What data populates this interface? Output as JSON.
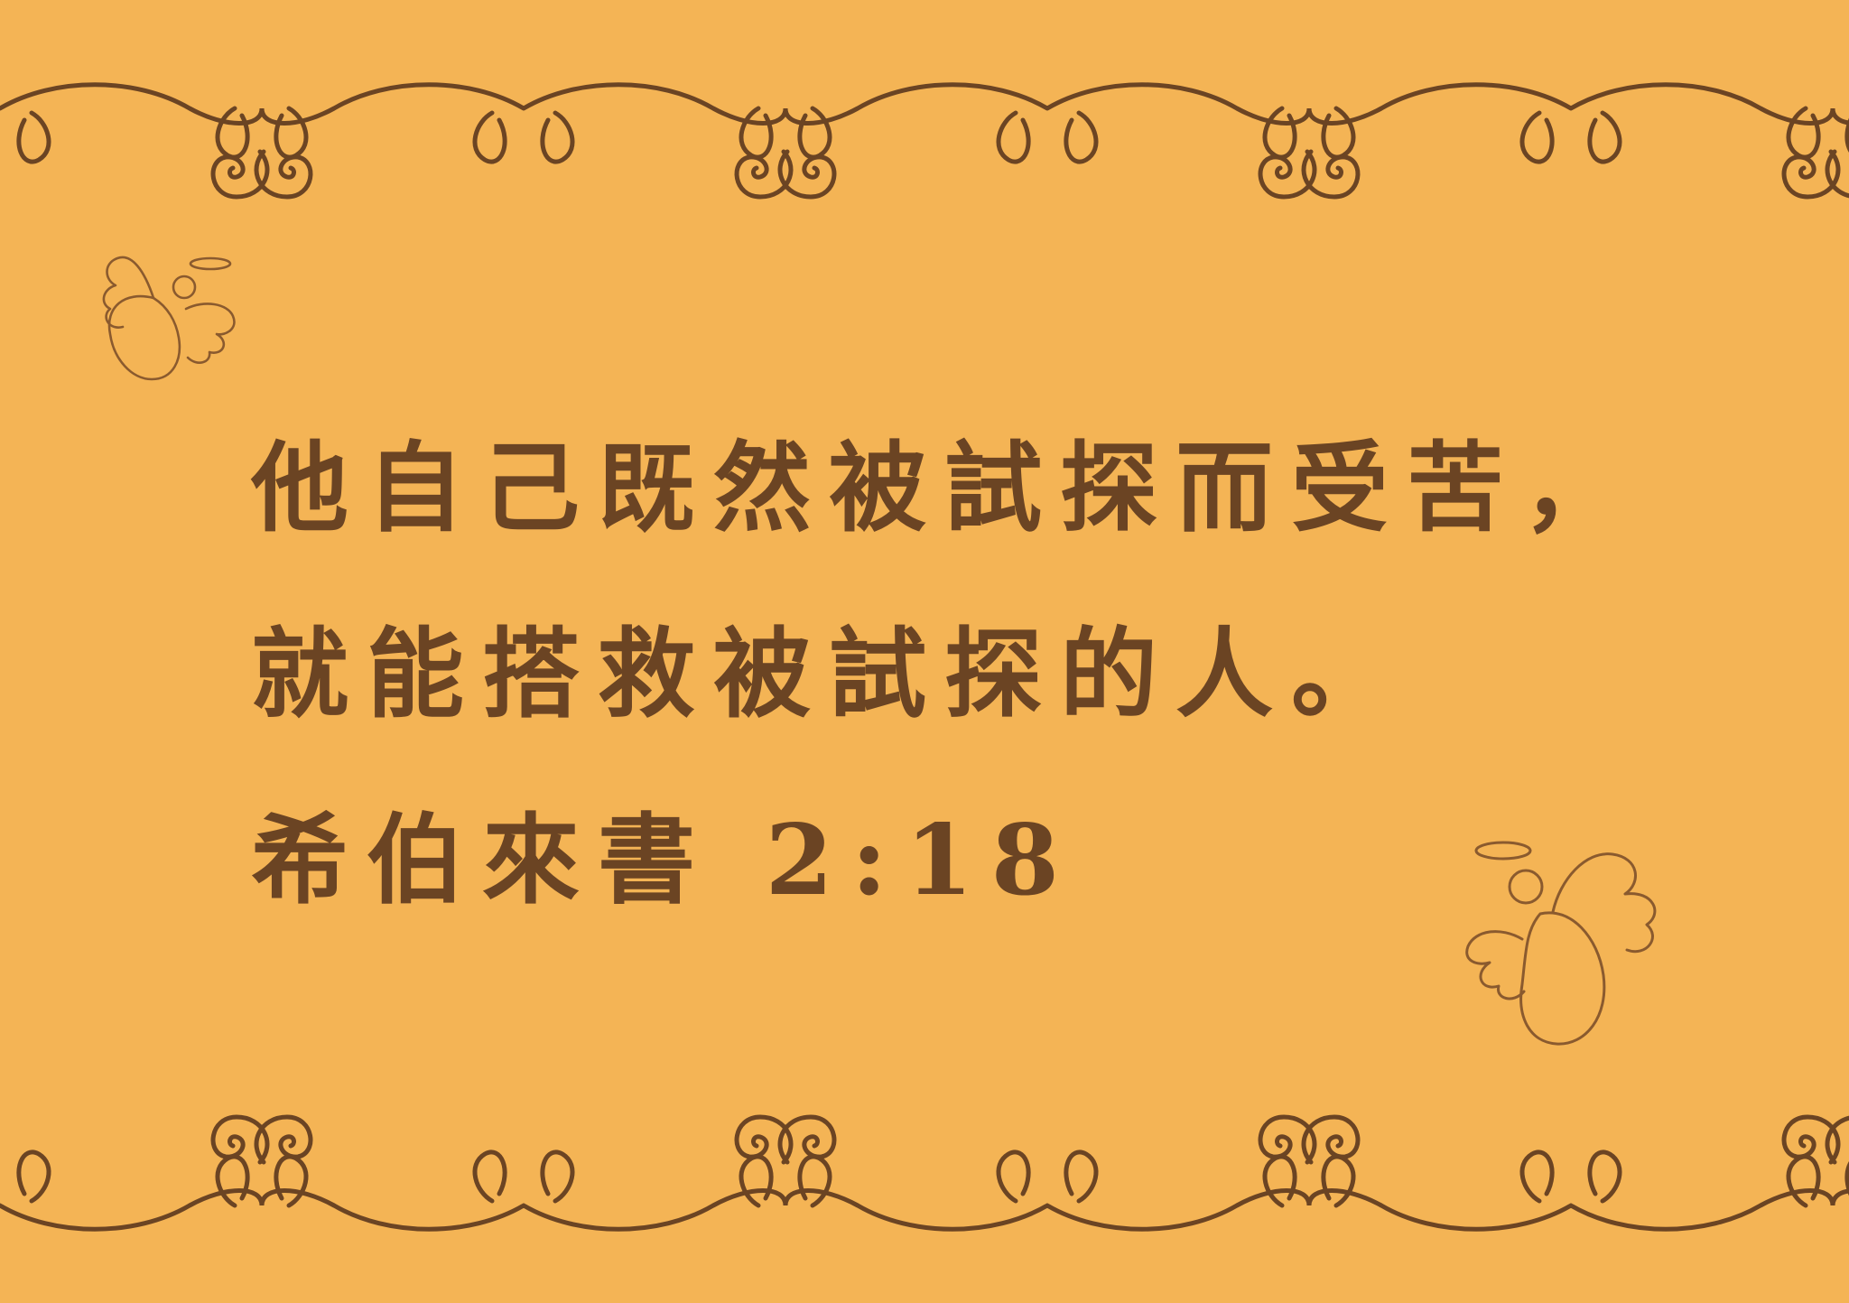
{
  "card": {
    "background_color": "#F4B455",
    "ink_color": "#6B4423",
    "doodle_color": "#8A5A2E"
  },
  "verse": {
    "lines": [
      "他自己既然被試探而受苦，",
      "就能搭救被試探的人。"
    ],
    "reference": "希伯來書 2:18"
  },
  "decorations": {
    "top_border": "swirl-border",
    "bottom_border": "swirl-border",
    "angel_top_left": "angel-doodle",
    "angel_bottom_right": "angel-doodle"
  }
}
